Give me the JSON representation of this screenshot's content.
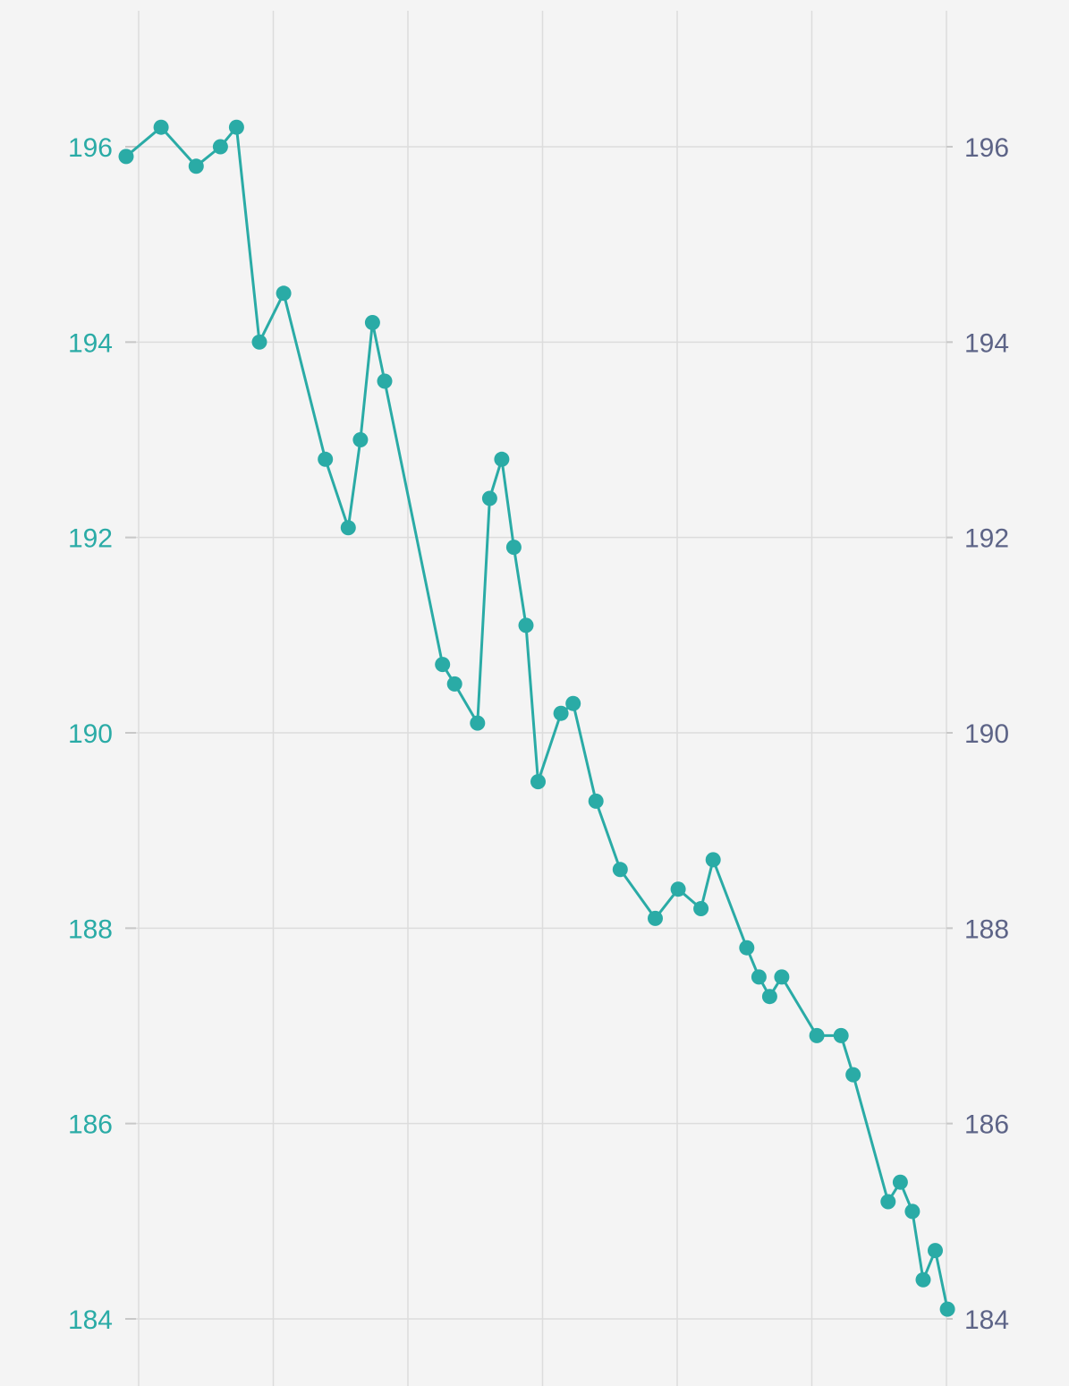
{
  "chart_data": {
    "type": "line",
    "title": "",
    "xlabel": "",
    "ylabel": "",
    "ylim": [
      184,
      196
    ],
    "yticks": [
      184,
      186,
      188,
      190,
      192,
      194,
      196
    ],
    "grid": true,
    "legend": "none",
    "colors": {
      "background": "#f4f4f4",
      "line": "#2aaba6",
      "left_tick_text": "#2aaba6",
      "right_tick_text": "#5d6487",
      "grid": "#dcdcdc",
      "tick_mark": "#c8c8c8"
    },
    "series": [
      {
        "x": [
          0,
          1.3,
          2.6,
          3.5,
          4.1,
          4.95,
          5.85,
          7.4,
          8.25,
          8.7,
          9.15,
          9.6,
          11.75,
          12.2,
          13.05,
          13.5,
          13.95,
          14.4,
          14.85,
          15.3,
          16.15,
          16.6,
          17.45,
          18.35,
          19.65,
          20.5,
          21.35,
          21.8,
          23.05,
          23.5,
          23.9,
          24.35,
          25.65,
          26.55,
          27.0,
          28.3,
          28.75,
          29.2,
          29.6,
          30.05,
          30.5
        ],
        "y": [
          195.9,
          196.2,
          195.8,
          196.0,
          196.2,
          194.0,
          194.5,
          192.8,
          192.1,
          193.0,
          194.2,
          193.6,
          190.7,
          190.5,
          190.1,
          192.4,
          192.8,
          191.9,
          191.1,
          189.5,
          190.2,
          190.3,
          189.3,
          188.6,
          188.1,
          188.4,
          188.2,
          188.7,
          187.8,
          187.5,
          187.3,
          187.5,
          186.9,
          186.9,
          186.5,
          185.2,
          185.4,
          185.1,
          184.4,
          184.7,
          184.1
        ]
      }
    ]
  }
}
